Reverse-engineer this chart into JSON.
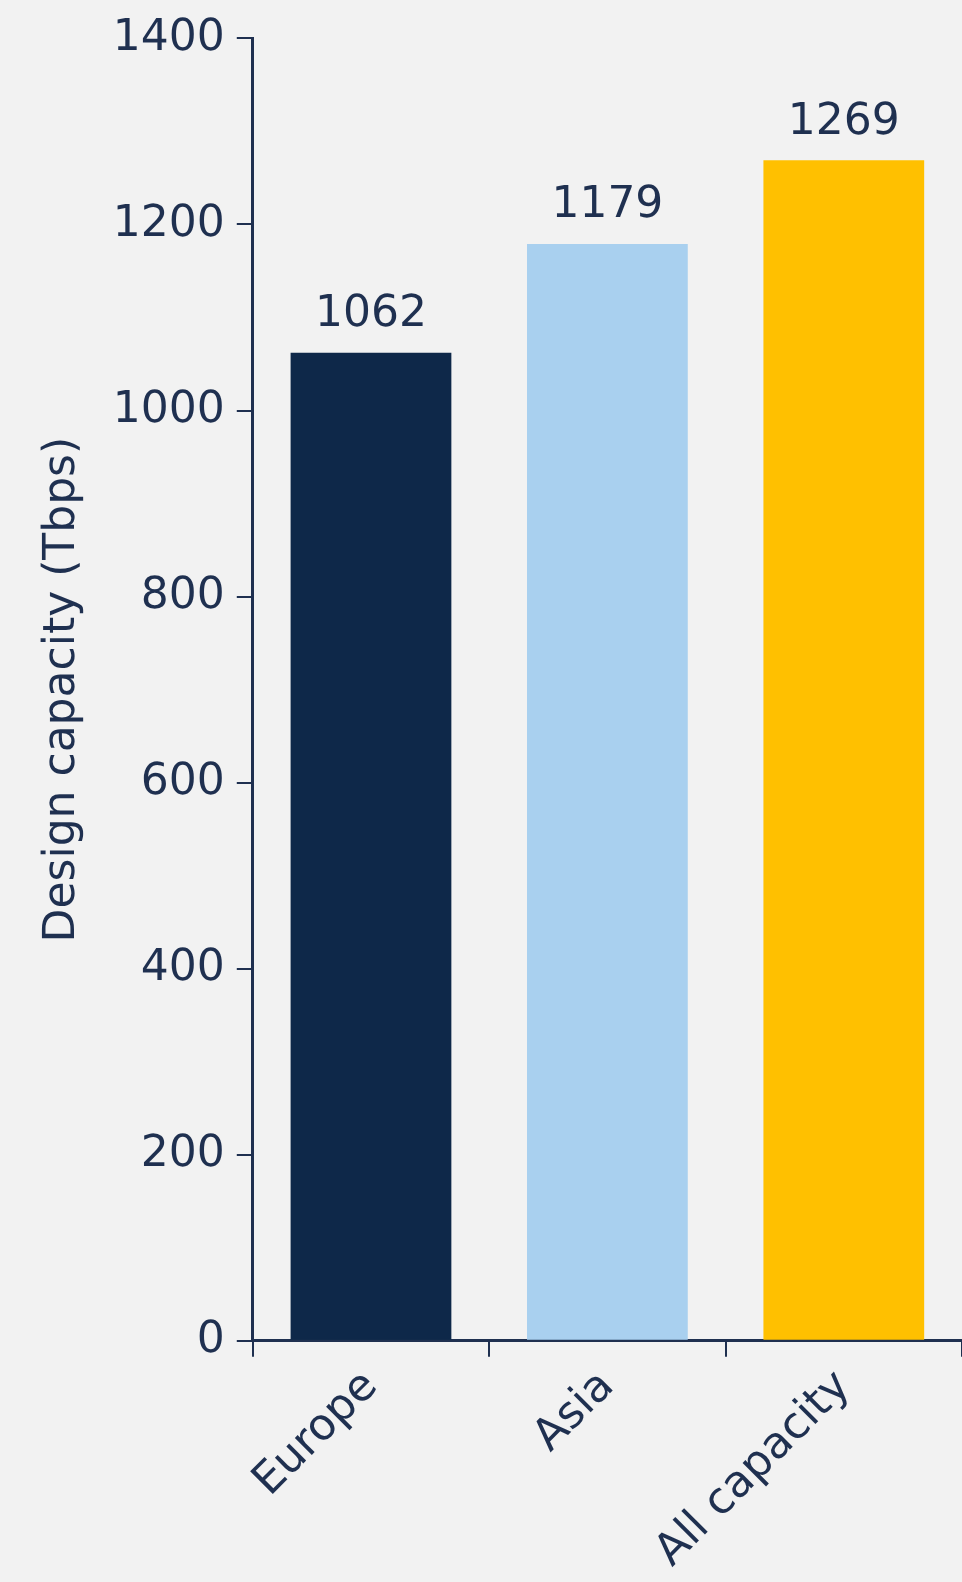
{
  "chart_data": {
    "type": "bar",
    "ylabel": "Design capacity (Tbps)",
    "categories": [
      "Europe",
      "Asia",
      "All capacity"
    ],
    "values": [
      1062,
      1179,
      1269
    ],
    "colors": [
      "#0e2849",
      "#a9d0ef",
      "#ffc000"
    ],
    "ylim": [
      0,
      1400
    ],
    "yticks": [
      0,
      200,
      400,
      600,
      800,
      1000,
      1200,
      1400
    ],
    "data_labels": true,
    "grid": false,
    "legend": false
  }
}
